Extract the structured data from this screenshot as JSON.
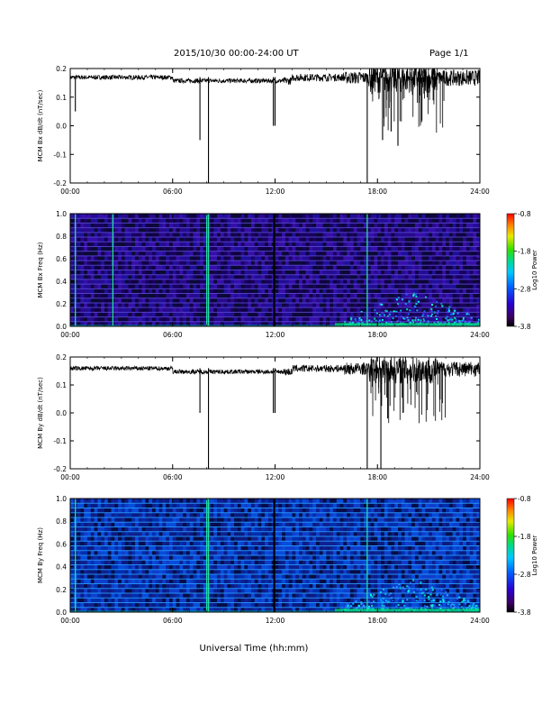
{
  "header": {
    "title": "2015/10/30  00:00-24:00 UT",
    "page": "Page 1/1"
  },
  "x_axis_label": "Universal Time (hh:mm)",
  "chart_data": [
    {
      "type": "line",
      "ylabel": "MCM Bx dB/dt (nT/sec)",
      "xlim": [
        0,
        24
      ],
      "ylim": [
        -0.2,
        0.2
      ],
      "xticks": [
        "00:00",
        "06:00",
        "12:00",
        "18:00",
        "24:00"
      ],
      "yticks": [
        "-0.2",
        "-0.1",
        "0.0",
        "0.1",
        "0.2"
      ],
      "baseline": 0.17,
      "spikes": [
        {
          "x": 0.3,
          "y": 0.05
        },
        {
          "x": 7.6,
          "y": -0.05
        },
        {
          "x": 8.1,
          "y": -0.2
        },
        {
          "x": 11.9,
          "y": 0.0
        },
        {
          "x": 12.0,
          "y": 0.0
        },
        {
          "x": 17.4,
          "y": -0.2
        },
        {
          "x": 18.3,
          "y": -0.05
        },
        {
          "x": 18.8,
          "y": -0.02
        },
        {
          "x": 19.2,
          "y": -0.07
        }
      ]
    },
    {
      "type": "heatmap",
      "ylabel": "MCM Bx Freq (Hz)",
      "xlim": [
        0,
        24
      ],
      "ylim": [
        0,
        1.0
      ],
      "xticks": [
        "00:00",
        "06:00",
        "12:00",
        "18:00",
        "24:00"
      ],
      "yticks": [
        "0.0",
        "0.2",
        "0.4",
        "0.6",
        "0.8",
        "1.0"
      ],
      "colorbar": {
        "label": "Log10 Power",
        "range": [
          -3.8,
          -0.8
        ],
        "ticks": [
          "-0.8",
          "-1.8",
          "-2.8",
          "-3.8"
        ]
      },
      "harmonic_lines_hz": [
        0.0417,
        0.0833,
        0.125,
        0.1667,
        0.2083,
        0.25,
        0.2917,
        0.3333,
        0.375,
        0.4167,
        0.4583,
        0.5,
        0.5417,
        0.5833,
        0.625,
        0.6667,
        0.7083,
        0.75,
        0.7917,
        0.8333,
        0.875,
        0.9167,
        0.9583
      ],
      "vertical_events_h": [
        0.3,
        2.5,
        8.0,
        8.1,
        11.95,
        17.4
      ],
      "activity_region": {
        "x": [
          16,
          24
        ],
        "y": [
          0,
          0.3
        ]
      }
    },
    {
      "type": "line",
      "ylabel": "MCM By dB/dt (nT/sec)",
      "xlim": [
        0,
        24
      ],
      "ylim": [
        -0.2,
        0.2
      ],
      "xticks": [
        "00:00",
        "06:00",
        "12:00",
        "18:00",
        "24:00"
      ],
      "yticks": [
        "-0.2",
        "-0.1",
        "0.0",
        "0.1",
        "0.2"
      ],
      "baseline": 0.16,
      "spikes": [
        {
          "x": 7.6,
          "y": 0.0
        },
        {
          "x": 8.1,
          "y": -0.2
        },
        {
          "x": 11.9,
          "y": 0.0
        },
        {
          "x": 12.0,
          "y": 0.0
        },
        {
          "x": 17.4,
          "y": -0.2
        },
        {
          "x": 18.2,
          "y": -0.2
        },
        {
          "x": 18.6,
          "y": -0.02
        },
        {
          "x": 19.5,
          "y": 0.0
        }
      ]
    },
    {
      "type": "heatmap",
      "ylabel": "MCM By Freq (Hz)",
      "xlim": [
        0,
        24
      ],
      "ylim": [
        0,
        1.0
      ],
      "xticks": [
        "00:00",
        "06:00",
        "12:00",
        "18:00",
        "24:00"
      ],
      "yticks": [
        "0.0",
        "0.2",
        "0.4",
        "0.6",
        "0.8",
        "1.0"
      ],
      "colorbar": {
        "label": "Log10 Power",
        "range": [
          -3.8,
          -0.8
        ],
        "ticks": [
          "-0.8",
          "-1.8",
          "-2.8",
          "-3.8"
        ]
      },
      "harmonic_lines_hz": [
        0.0417,
        0.0833,
        0.125,
        0.1667,
        0.2083,
        0.25,
        0.2917,
        0.3333,
        0.375,
        0.4167,
        0.4583,
        0.5,
        0.5417,
        0.5833,
        0.625,
        0.6667,
        0.7083,
        0.75,
        0.7917,
        0.8333,
        0.875,
        0.9167,
        0.9583
      ],
      "vertical_events_h": [
        0.3,
        8.0,
        8.1,
        11.95,
        17.4
      ],
      "activity_region": {
        "x": [
          16,
          24
        ],
        "y": [
          0,
          0.3
        ]
      }
    }
  ]
}
